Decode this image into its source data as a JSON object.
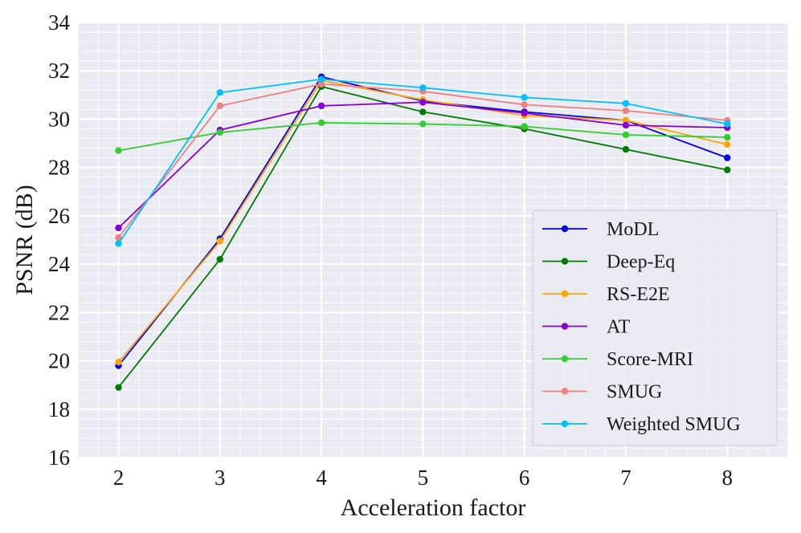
{
  "chart_data": {
    "type": "line",
    "title": "",
    "xlabel": "Acceleration factor",
    "ylabel": "PSNR (dB)",
    "x": [
      2,
      3,
      4,
      5,
      6,
      7,
      8
    ],
    "xlim": [
      1.6,
      8.6
    ],
    "ylim": [
      16,
      34
    ],
    "xticks": [
      2,
      3,
      4,
      5,
      6,
      7,
      8
    ],
    "yticks": [
      16,
      18,
      20,
      22,
      24,
      26,
      28,
      30,
      32,
      34
    ],
    "grid": true,
    "grid_minor": true,
    "background": "#eaeaf2",
    "legend_position": "lower-right",
    "series": [
      {
        "name": "MoDL",
        "color": "#0000ee",
        "values": [
          19.8,
          25.05,
          31.75,
          30.75,
          30.3,
          29.95,
          28.4
        ]
      },
      {
        "name": "Deep-Eq",
        "color": "#007a00",
        "values": [
          18.9,
          24.2,
          31.35,
          30.3,
          29.6,
          28.75,
          27.9
        ]
      },
      {
        "name": "RS-E2E",
        "color": "#ffa500",
        "values": [
          19.95,
          24.95,
          31.6,
          30.8,
          30.15,
          29.95,
          28.95
        ]
      },
      {
        "name": "AT",
        "color": "#8a00d4",
        "values": [
          25.5,
          29.55,
          30.55,
          30.7,
          30.25,
          29.75,
          29.65
        ]
      },
      {
        "name": "Score-MRI",
        "color": "#33cc33",
        "values": [
          28.7,
          29.45,
          29.85,
          29.8,
          29.7,
          29.35,
          29.25
        ]
      },
      {
        "name": "SMUG",
        "color": "#f08080",
        "values": [
          25.1,
          30.55,
          31.45,
          31.15,
          30.6,
          30.35,
          29.95
        ]
      },
      {
        "name": "Weighted SMUG",
        "color": "#00bfff",
        "values": [
          24.85,
          31.1,
          31.65,
          31.3,
          30.9,
          30.65,
          29.8
        ]
      }
    ]
  }
}
